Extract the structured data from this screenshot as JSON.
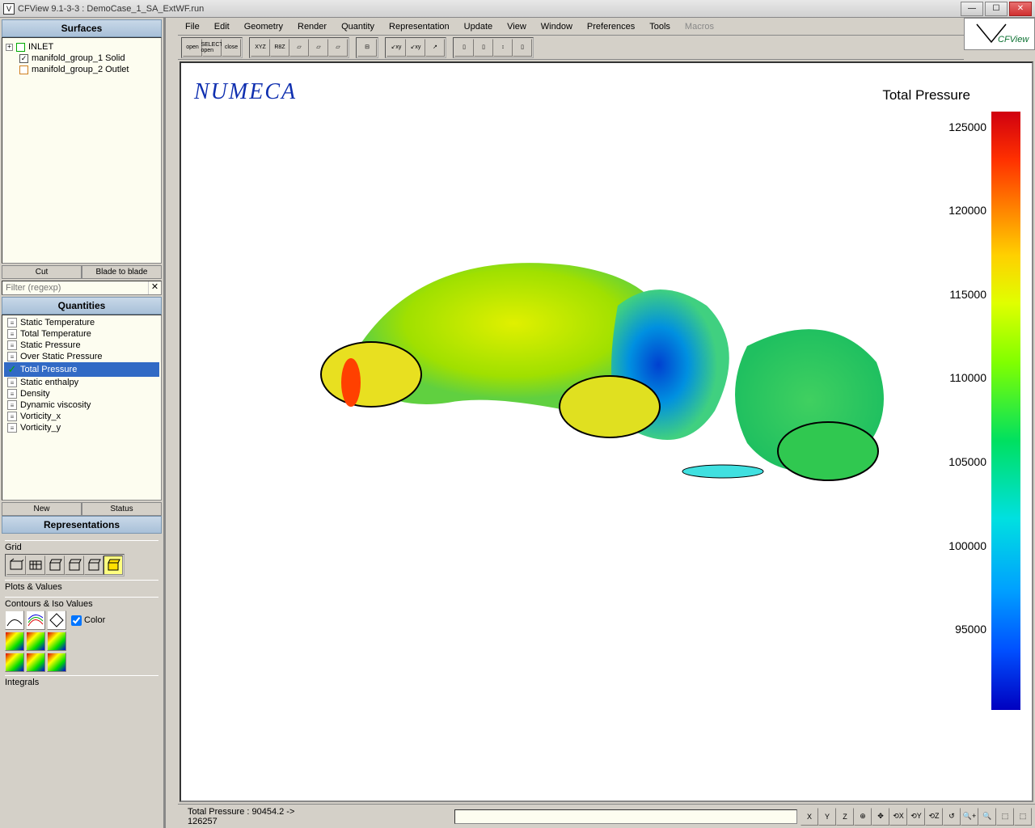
{
  "window": {
    "title": "CFView 9.1-3-3 : DemoCase_1_SA_ExtWF.run",
    "icon_label": "V"
  },
  "menus": [
    "File",
    "Edit",
    "Geometry",
    "Render",
    "Quantity",
    "Representation",
    "Update",
    "View",
    "Window",
    "Preferences",
    "Tools",
    "Macros"
  ],
  "menus_disabled": [
    false,
    false,
    false,
    false,
    false,
    false,
    false,
    false,
    false,
    false,
    false,
    true
  ],
  "logo_text": "CFView",
  "left": {
    "surfaces_header": "Surfaces",
    "tree": [
      {
        "expander": "+",
        "check_style": "green",
        "checked": false,
        "label": "INLET"
      },
      {
        "expander": "",
        "check_style": "",
        "checked": true,
        "label": "manifold_group_1 Solid"
      },
      {
        "expander": "",
        "check_style": "orange",
        "checked": false,
        "label": "manifold_group_2 Outlet"
      }
    ],
    "cut_btn": "Cut",
    "blade_btn": "Blade to blade",
    "filter_placeholder": "Filter (regexp)",
    "quantities_header": "Quantities",
    "quantities": [
      {
        "label": "Static Temperature",
        "selected": false,
        "checked": false
      },
      {
        "label": "Total Temperature",
        "selected": false,
        "checked": false
      },
      {
        "label": "Static Pressure",
        "selected": false,
        "checked": false
      },
      {
        "label": "Over Static Pressure",
        "selected": false,
        "checked": false
      },
      {
        "label": "Total Pressure",
        "selected": true,
        "checked": true
      },
      {
        "label": "Static enthalpy",
        "selected": false,
        "checked": false
      },
      {
        "label": "Density",
        "selected": false,
        "checked": false
      },
      {
        "label": "Dynamic viscosity",
        "selected": false,
        "checked": false
      },
      {
        "label": "Vorticity_x",
        "selected": false,
        "checked": false
      },
      {
        "label": "Vorticity_y",
        "selected": false,
        "checked": false
      }
    ],
    "new_btn": "New",
    "status_btn": "Status",
    "representations_header": "Representations",
    "grid_label": "Grid",
    "plots_label": "Plots & Values",
    "contours_label": "Contours & Iso Values",
    "color_checkbox": "Color",
    "integrals_label": "Integrals"
  },
  "viewport": {
    "brand": "NUMECA",
    "colorbar_title": "Total Pressure",
    "colorbar": {
      "min": 90454.2,
      "max": 126257,
      "ticks": [
        {
          "value": "125000",
          "pos_pct": 2.5
        },
        {
          "value": "120000",
          "pos_pct": 16.5
        },
        {
          "value": "115000",
          "pos_pct": 30.5
        },
        {
          "value": "110000",
          "pos_pct": 44.5
        },
        {
          "value": "105000",
          "pos_pct": 58.5
        },
        {
          "value": "100000",
          "pos_pct": 72.5
        },
        {
          "value": "95000",
          "pos_pct": 86.5
        }
      ],
      "gradient_stops": [
        {
          "pct": 0,
          "color": "#d00010"
        },
        {
          "pct": 8,
          "color": "#ff3000"
        },
        {
          "pct": 16,
          "color": "#ff8000"
        },
        {
          "pct": 24,
          "color": "#ffd000"
        },
        {
          "pct": 32,
          "color": "#e0ff00"
        },
        {
          "pct": 42,
          "color": "#80ff00"
        },
        {
          "pct": 55,
          "color": "#00e060"
        },
        {
          "pct": 68,
          "color": "#00e0e0"
        },
        {
          "pct": 80,
          "color": "#00a0ff"
        },
        {
          "pct": 90,
          "color": "#0050ff"
        },
        {
          "pct": 100,
          "color": "#0000c0"
        }
      ]
    }
  },
  "status": {
    "text": "Total Pressure :  90454.2   ->   126257",
    "nav_buttons": [
      "X",
      "Y",
      "Z",
      "⊕",
      "✥",
      "⟲X",
      "⟲Y",
      "⟲Z",
      "↺",
      "🔍+",
      "🔍",
      "⬚",
      "⬚"
    ]
  },
  "toolbar_groups": [
    [
      "open",
      "SELECT\nopen",
      "close"
    ],
    [
      "XYZ",
      "R8Z",
      "▱",
      "▱",
      "▱"
    ],
    [
      "⊟"
    ],
    [
      "↙xy",
      "↙xy",
      "↗"
    ],
    [
      "▯",
      "▯",
      "↕",
      "▯"
    ]
  ]
}
